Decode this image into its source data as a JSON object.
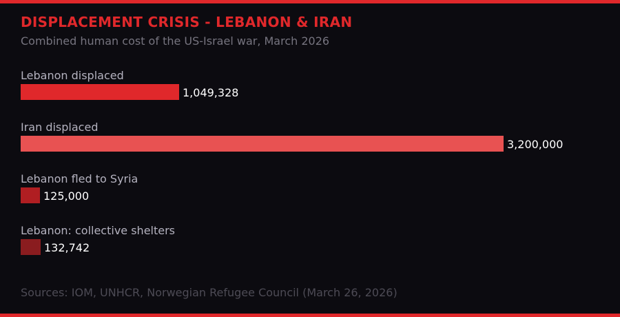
{
  "header": {
    "title": "DISPLACEMENT CRISIS - LEBANON & IRAN",
    "subtitle": "Combined human cost of the US-Israel war, March 2026"
  },
  "footer": {
    "sources": "Sources: IOM, UNHCR, Norwegian Refugee Council (March 26, 2026)"
  },
  "colors": {
    "accent": "#e0282b",
    "background": "#0c0b10"
  },
  "chart_data": {
    "type": "bar",
    "orientation": "horizontal",
    "categories": [
      "Lebanon displaced",
      "Iran displaced",
      "Lebanon fled to Syria",
      "Lebanon: collective shelters"
    ],
    "values": [
      1049328,
      3200000,
      125000,
      132742
    ],
    "value_labels": [
      "1,049,328",
      "3,200,000",
      "125,000",
      "132,742"
    ],
    "colors": [
      "#e0282b",
      "#e85252",
      "#b01e22",
      "#8a1c1f"
    ],
    "title": "DISPLACEMENT CRISIS - LEBANON & IRAN",
    "subtitle": "Combined human cost of the US-Israel war, March 2026",
    "grid": false,
    "legend": "none"
  }
}
